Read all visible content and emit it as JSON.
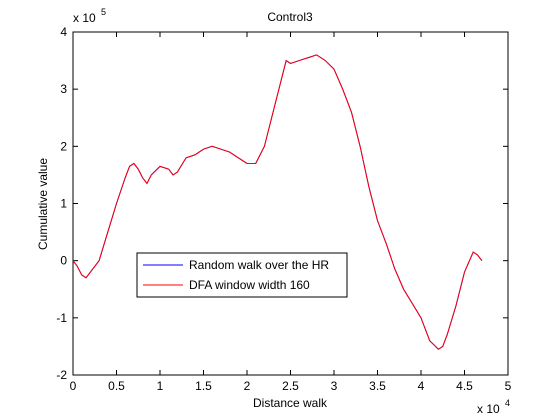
{
  "chart_data": {
    "type": "line",
    "title": "Control3",
    "x_label": "Distance walk",
    "y_label": "Cumulative value",
    "x_multiplier": {
      "base": "x 10",
      "exponent": 4
    },
    "y_multiplier": {
      "base": "x 10",
      "exponent": 5
    },
    "xlim": [
      0,
      5
    ],
    "xticks": [
      0,
      0.5,
      1,
      1.5,
      2,
      2.5,
      3,
      3.5,
      4,
      4.5,
      5
    ],
    "ylim": [
      -2,
      4
    ],
    "yticks": [
      -2,
      -1,
      0,
      1,
      2,
      3,
      4
    ],
    "legend": "center left",
    "x": [
      0,
      0.05,
      0.1,
      0.15,
      0.2,
      0.3,
      0.4,
      0.5,
      0.6,
      0.65,
      0.7,
      0.75,
      0.8,
      0.85,
      0.9,
      1.0,
      1.1,
      1.15,
      1.2,
      1.3,
      1.4,
      1.5,
      1.6,
      1.7,
      1.8,
      1.9,
      2.0,
      2.1,
      2.2,
      2.3,
      2.4,
      2.45,
      2.5,
      2.6,
      2.7,
      2.8,
      2.9,
      3.0,
      3.1,
      3.2,
      3.3,
      3.4,
      3.5,
      3.6,
      3.7,
      3.8,
      3.9,
      4.0,
      4.1,
      4.2,
      4.25,
      4.3,
      4.4,
      4.5,
      4.6,
      4.65,
      4.7
    ],
    "series": [
      {
        "name": "Random walk over the HR",
        "color": "#0000ff",
        "values": [
          0,
          -0.1,
          -0.25,
          -0.3,
          -0.2,
          0.0,
          0.5,
          1.0,
          1.45,
          1.65,
          1.7,
          1.6,
          1.45,
          1.35,
          1.5,
          1.65,
          1.6,
          1.5,
          1.55,
          1.8,
          1.85,
          1.95,
          2.0,
          1.95,
          1.9,
          1.8,
          1.7,
          1.7,
          2.0,
          2.6,
          3.2,
          3.5,
          3.45,
          3.5,
          3.55,
          3.6,
          3.5,
          3.35,
          3.0,
          2.6,
          2.0,
          1.3,
          0.7,
          0.3,
          -0.15,
          -0.5,
          -0.75,
          -1.0,
          -1.4,
          -1.55,
          -1.5,
          -1.3,
          -0.8,
          -0.2,
          0.15,
          0.1,
          0.0
        ]
      },
      {
        "name": "DFA window width 160",
        "color": "#ff0000",
        "values": [
          0,
          -0.1,
          -0.25,
          -0.3,
          -0.2,
          0.0,
          0.5,
          1.0,
          1.45,
          1.65,
          1.7,
          1.6,
          1.45,
          1.35,
          1.5,
          1.65,
          1.6,
          1.5,
          1.55,
          1.8,
          1.85,
          1.95,
          2.0,
          1.95,
          1.9,
          1.8,
          1.7,
          1.7,
          2.0,
          2.6,
          3.2,
          3.5,
          3.45,
          3.5,
          3.55,
          3.6,
          3.5,
          3.35,
          3.0,
          2.6,
          2.0,
          1.3,
          0.7,
          0.3,
          -0.15,
          -0.5,
          -0.75,
          -1.0,
          -1.4,
          -1.55,
          -1.5,
          -1.3,
          -0.8,
          -0.2,
          0.15,
          0.1,
          0.0
        ]
      }
    ]
  }
}
